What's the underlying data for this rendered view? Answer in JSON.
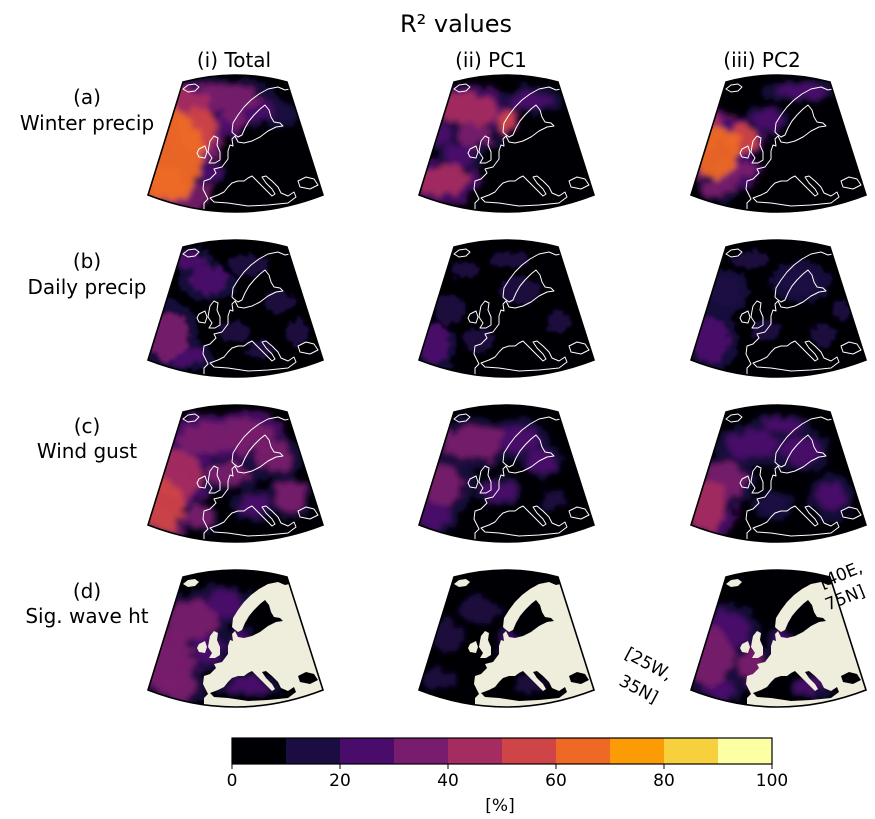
{
  "chart_data": {
    "type": "heatmap",
    "title": "R² values",
    "column_labels": [
      "(i) Total",
      "(ii) PC1",
      "(iii) PC2"
    ],
    "row_labels": [
      {
        "letter": "(a)",
        "name": "Winter precip"
      },
      {
        "letter": "(b)",
        "name": "Daily precip"
      },
      {
        "letter": "(c)",
        "name": "Wind gust"
      },
      {
        "letter": "(d)",
        "name": "Sig. wave ht"
      }
    ],
    "colorbar": {
      "vmin": 0,
      "vmax": 100,
      "step": 10,
      "ticks": [
        "0",
        "20",
        "40",
        "60",
        "80",
        "100"
      ],
      "label": "[%]",
      "colors": [
        "#000004",
        "#1b0c41",
        "#4a0c6b",
        "#781c6d",
        "#a52c60",
        "#cf4446",
        "#ed6925",
        "#fb9b06",
        "#f7d13d",
        "#fcffa4"
      ]
    },
    "domain_corners": {
      "upper_right": [
        "[40E,",
        "75N]"
      ],
      "lower_left": [
        "[25W,",
        "35N]"
      ]
    },
    "map_style": {
      "background": "#000004",
      "coastline_color": "#ffffff",
      "land_color": "#efeedd",
      "frame_color": "#000000"
    },
    "panels": [
      {
        "row": 0,
        "col": 0,
        "peak_r2_pct": 65,
        "land_mask": false
      },
      {
        "row": 0,
        "col": 1,
        "peak_r2_pct": 58,
        "land_mask": false
      },
      {
        "row": 0,
        "col": 2,
        "peak_r2_pct": 65,
        "land_mask": false
      },
      {
        "row": 1,
        "col": 0,
        "peak_r2_pct": 35,
        "land_mask": false
      },
      {
        "row": 1,
        "col": 1,
        "peak_r2_pct": 30,
        "land_mask": false
      },
      {
        "row": 1,
        "col": 2,
        "peak_r2_pct": 32,
        "land_mask": false
      },
      {
        "row": 2,
        "col": 0,
        "peak_r2_pct": 55,
        "land_mask": false
      },
      {
        "row": 2,
        "col": 1,
        "peak_r2_pct": 45,
        "land_mask": false
      },
      {
        "row": 2,
        "col": 2,
        "peak_r2_pct": 48,
        "land_mask": false
      },
      {
        "row": 3,
        "col": 0,
        "peak_r2_pct": 40,
        "land_mask": true
      },
      {
        "row": 3,
        "col": 1,
        "peak_r2_pct": 30,
        "land_mask": true
      },
      {
        "row": 3,
        "col": 2,
        "peak_r2_pct": 40,
        "land_mask": true
      }
    ]
  }
}
